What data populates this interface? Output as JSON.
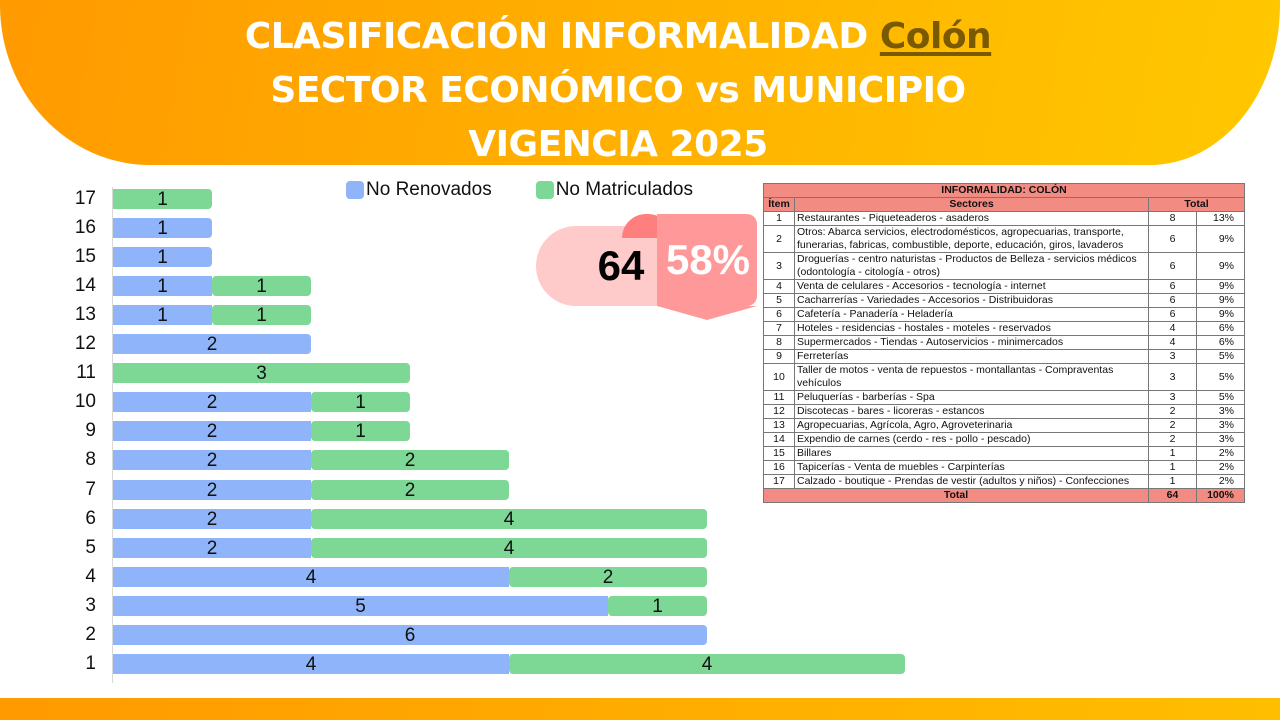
{
  "header": {
    "line1_prefix": "CLASIFICACIÓN INFORMALIDAD ",
    "line1_highlight": "Colón",
    "line2": "SECTOR ECONÓMICO vs MUNICIPIO",
    "line3": "VIGENCIA 2025"
  },
  "colors": {
    "no_renovados": "#8fb4f9",
    "no_matriculados": "#7dd795",
    "header_gradient_start": "#ff9a00",
    "header_gradient_end": "#ffc800",
    "table_header": "#f28b82"
  },
  "legend": {
    "no_renovados": "No Renovados",
    "no_matriculados": "No Matriculados"
  },
  "kpi": {
    "total": "64",
    "percent": "58%"
  },
  "chart_data": {
    "type": "bar",
    "orientation": "horizontal",
    "stacked": true,
    "title": "",
    "xlabel": "",
    "ylabel": "",
    "categories": [
      "17",
      "16",
      "15",
      "14",
      "13",
      "12",
      "11",
      "10",
      "9",
      "8",
      "7",
      "6",
      "5",
      "4",
      "3",
      "2",
      "1"
    ],
    "series": [
      {
        "name": "No Renovados",
        "values": [
          0,
          1,
          1,
          1,
          1,
          2,
          0,
          2,
          2,
          2,
          2,
          2,
          2,
          4,
          5,
          6,
          4
        ]
      },
      {
        "name": "No Matriculados",
        "values": [
          1,
          0,
          0,
          1,
          1,
          0,
          3,
          1,
          1,
          2,
          2,
          4,
          4,
          2,
          1,
          0,
          4
        ]
      }
    ],
    "legend_position": "top",
    "grid": false,
    "data_labels": true
  },
  "table": {
    "title": "INFORMALIDAD: COLÓN",
    "headers": {
      "item": "Ítem",
      "sectores": "Sectores",
      "total": "Total"
    },
    "rows": [
      {
        "item": "1",
        "sector": "Restaurantes - Piqueteaderos - asaderos",
        "count": "8",
        "pct": "13%"
      },
      {
        "item": "2",
        "sector": "Otros: Abarca servicios, electrodomésticos, agropecuarias, transporte, funerarias, fabricas, combustible, deporte, educación, giros, lavaderos",
        "count": "6",
        "pct": "9%"
      },
      {
        "item": "3",
        "sector": "Droguerías - centro naturistas - Productos de Belleza - servicios médicos (odontología - citología - otros)",
        "count": "6",
        "pct": "9%"
      },
      {
        "item": "4",
        "sector": "Venta de celulares - Accesorios - tecnología - internet",
        "count": "6",
        "pct": "9%"
      },
      {
        "item": "5",
        "sector": "Cacharrerías - Variedades - Accesorios - Distribuidoras",
        "count": "6",
        "pct": "9%"
      },
      {
        "item": "6",
        "sector": "Cafetería - Panadería - Heladería",
        "count": "6",
        "pct": "9%"
      },
      {
        "item": "7",
        "sector": "Hoteles - residencias - hostales - moteles - reservados",
        "count": "4",
        "pct": "6%"
      },
      {
        "item": "8",
        "sector": "Supermercados - Tiendas - Autoservicios - minimercados",
        "count": "4",
        "pct": "6%"
      },
      {
        "item": "9",
        "sector": "Ferreterías",
        "count": "3",
        "pct": "5%"
      },
      {
        "item": "10",
        "sector": "Taller de motos - venta de repuestos - montallantas - Compraventas vehículos",
        "count": "3",
        "pct": "5%"
      },
      {
        "item": "11",
        "sector": "Peluquerías - barberías - Spa",
        "count": "3",
        "pct": "5%"
      },
      {
        "item": "12",
        "sector": "Discotecas - bares - licoreras - estancos",
        "count": "2",
        "pct": "3%"
      },
      {
        "item": "13",
        "sector": "Agropecuarias, Agrícola, Agro, Agroveterinaria",
        "count": "2",
        "pct": "3%"
      },
      {
        "item": "14",
        "sector": "Expendio de carnes (cerdo - res - pollo - pescado)",
        "count": "2",
        "pct": "3%"
      },
      {
        "item": "15",
        "sector": "Billares",
        "count": "1",
        "pct": "2%"
      },
      {
        "item": "16",
        "sector": "Tapicerías - Venta de muebles - Carpinterías",
        "count": "1",
        "pct": "2%"
      },
      {
        "item": "17",
        "sector": "Calzado - boutique - Prendas de vestir (adultos y niños) - Confecciones",
        "count": "1",
        "pct": "2%"
      }
    ],
    "total": {
      "label": "Total",
      "count": "64",
      "pct": "100%"
    }
  }
}
